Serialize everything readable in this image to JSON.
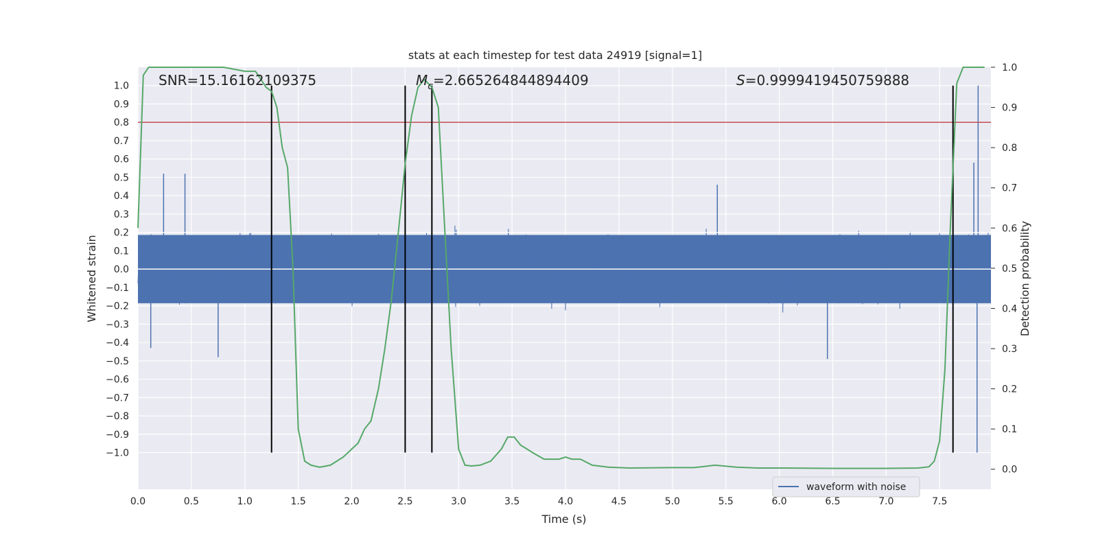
{
  "chart_data": {
    "type": "line",
    "title": "stats at each timestep for test data 24919 [signal=1]",
    "xlabel": "Time (s)",
    "ylabel_left": "Whitened strain",
    "ylabel_right": "Detection probability",
    "xlim": [
      0.0,
      7.98
    ],
    "ylim_left": [
      -1.2,
      1.1
    ],
    "ylim_right": [
      -0.05,
      1.0
    ],
    "x_ticks": [
      "0.0",
      "0.5",
      "1.0",
      "1.5",
      "2.0",
      "2.5",
      "3.0",
      "3.5",
      "4.0",
      "4.5",
      "5.0",
      "5.5",
      "6.0",
      "6.5",
      "7.0",
      "7.5"
    ],
    "y_left_ticks": [
      "1.0",
      "0.9",
      "0.8",
      "0.7",
      "0.6",
      "0.5",
      "0.4",
      "0.3",
      "0.2",
      "0.1",
      "0.0",
      "−0.1",
      "−0.2",
      "−0.3",
      "−0.4",
      "−0.5",
      "−0.6",
      "−0.7",
      "−0.8",
      "−0.9",
      "−1.0"
    ],
    "y_right_ticks": [
      "1.0",
      "0.9",
      "0.8",
      "0.7",
      "0.6",
      "0.5",
      "0.4",
      "0.3",
      "0.2",
      "0.1",
      "0.0"
    ],
    "grid": true,
    "legend_placement": "lower-right",
    "annotations": {
      "snr": "SNR=15.16162109375",
      "mc_symbol": "M",
      "mc_sub": "c",
      "mc_value": "=2.665264844894409",
      "s_symbol": "S",
      "s_value": "=0.9999419450759888"
    },
    "threshold_line": {
      "y_left": 0.8,
      "color": "#c44e52"
    },
    "vertical_lines_x": [
      1.25,
      2.5,
      2.75,
      7.625
    ],
    "series": [
      {
        "name": "waveform with noise",
        "axis": "left",
        "color": "#4c72b0",
        "envelope_typical": 0.3,
        "notable_spikes": [
          {
            "x": 0.24,
            "y": 0.52
          },
          {
            "x": 0.44,
            "y": 0.52
          },
          {
            "x": 0.12,
            "y": -0.43
          },
          {
            "x": 0.75,
            "y": -0.48
          },
          {
            "x": 5.42,
            "y": 0.46
          },
          {
            "x": 6.45,
            "y": -0.49
          },
          {
            "x": 7.82,
            "y": 0.58
          },
          {
            "x": 7.86,
            "y": 1.0
          },
          {
            "x": 7.85,
            "y": -1.0
          }
        ]
      },
      {
        "axis": "right",
        "color": "#55a868",
        "x": [
          0.0,
          0.05,
          0.1,
          0.2,
          0.3,
          0.4,
          0.5,
          0.6,
          0.7,
          0.8,
          0.9,
          1.0,
          1.1,
          1.15,
          1.2,
          1.25,
          1.3,
          1.35,
          1.4,
          1.45,
          1.5,
          1.56,
          1.62,
          1.7,
          1.8,
          1.86,
          1.92,
          2.0,
          2.06,
          2.12,
          2.18,
          2.25,
          2.31,
          2.37,
          2.44,
          2.5,
          2.56,
          2.62,
          2.68,
          2.75,
          2.81,
          2.87,
          2.93,
          3.0,
          3.06,
          3.12,
          3.2,
          3.3,
          3.4,
          3.46,
          3.52,
          3.58,
          3.64,
          3.7,
          3.8,
          3.86,
          3.94,
          4.0,
          4.06,
          4.14,
          4.25,
          4.4,
          4.6,
          5.0,
          5.2,
          5.4,
          5.6,
          5.8,
          6.0,
          6.5,
          7.0,
          7.3,
          7.4,
          7.45,
          7.5,
          7.55,
          7.6,
          7.66,
          7.72,
          7.78,
          7.84,
          7.92
        ],
        "y": [
          0.6,
          0.98,
          1.0,
          1.0,
          1.0,
          1.0,
          1.0,
          1.0,
          1.0,
          1.0,
          0.995,
          0.99,
          0.99,
          0.97,
          0.95,
          0.94,
          0.9,
          0.8,
          0.75,
          0.5,
          0.1,
          0.02,
          0.01,
          0.005,
          0.01,
          0.02,
          0.03,
          0.05,
          0.065,
          0.1,
          0.12,
          0.2,
          0.3,
          0.42,
          0.6,
          0.76,
          0.88,
          0.95,
          0.97,
          0.95,
          0.9,
          0.6,
          0.3,
          0.05,
          0.01,
          0.008,
          0.01,
          0.02,
          0.05,
          0.08,
          0.08,
          0.06,
          0.05,
          0.04,
          0.025,
          0.025,
          0.025,
          0.03,
          0.025,
          0.025,
          0.01,
          0.005,
          0.003,
          0.004,
          0.004,
          0.01,
          0.005,
          0.003,
          0.003,
          0.002,
          0.002,
          0.003,
          0.006,
          0.02,
          0.07,
          0.25,
          0.6,
          0.96,
          1.0,
          1.0,
          1.0,
          1.0
        ]
      }
    ]
  }
}
